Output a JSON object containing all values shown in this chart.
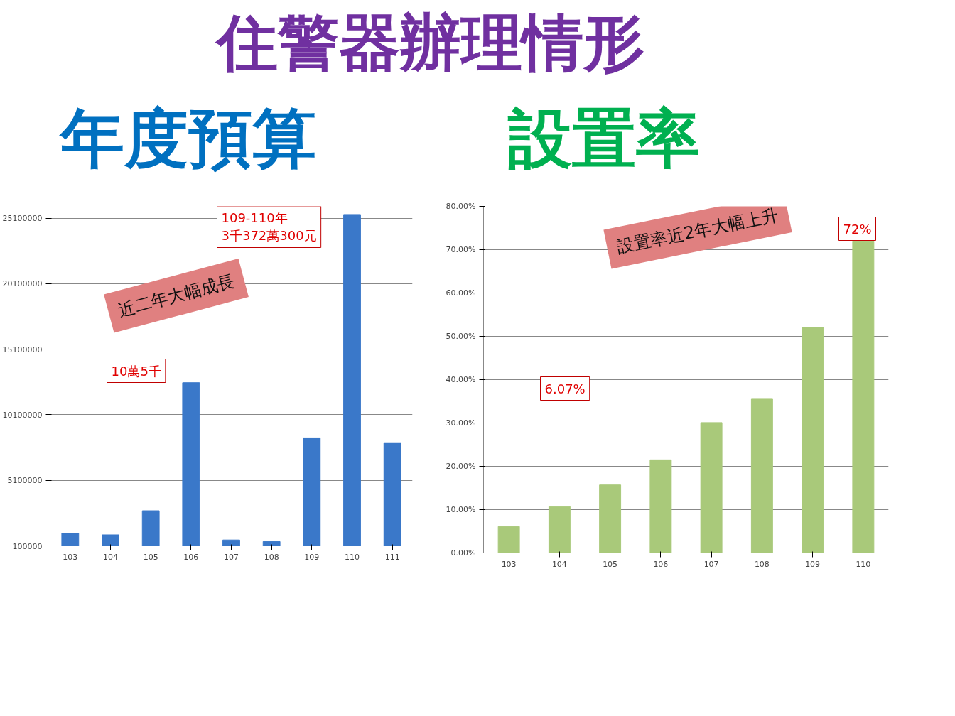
{
  "chart_data": [
    {
      "type": "bar",
      "title": "住警器辦理情形",
      "subtitle": "年度預算",
      "categories": [
        "103",
        "104",
        "105",
        "106",
        "107",
        "108",
        "109",
        "110",
        "111"
      ],
      "values": [
        1050000,
        940000,
        2780000,
        12550000,
        550000,
        430000,
        8340000,
        25380000,
        7970000
      ],
      "color": "#3a78c9",
      "ylim": [
        100000,
        26000000
      ],
      "yticks": [
        100000,
        5100000,
        10100000,
        15100000,
        20100000,
        25100000
      ],
      "grid": "y",
      "annotations": [
        "10萬5千",
        "近二年大幅成長",
        "109-110年\n3千372萬300元"
      ]
    },
    {
      "type": "bar",
      "subtitle": "設置率",
      "categories": [
        "103",
        "104",
        "105",
        "106",
        "107",
        "108",
        "109",
        "110"
      ],
      "values": [
        6.1,
        10.7,
        15.7,
        21.5,
        30.1,
        35.5,
        52.1,
        72
      ],
      "color": "#a9c97a",
      "ylim": [
        0,
        80
      ],
      "yticks": [
        {
          "value": 0,
          "label": "0.00%"
        },
        {
          "value": 10,
          "label": "10.00%"
        },
        {
          "value": 20,
          "label": "20.00%"
        },
        {
          "value": 30,
          "label": "30.00%"
        },
        {
          "value": 40,
          "label": "40.00%"
        },
        {
          "value": 50,
          "label": "50.00%"
        },
        {
          "value": 60,
          "label": "60.00%"
        },
        {
          "value": 70,
          "label": "70.00%"
        },
        {
          "value": 80,
          "label": "80.00%"
        }
      ],
      "grid": "y",
      "annotations": [
        "6.07%",
        "設置率近2年大幅上升",
        "72%"
      ]
    }
  ]
}
